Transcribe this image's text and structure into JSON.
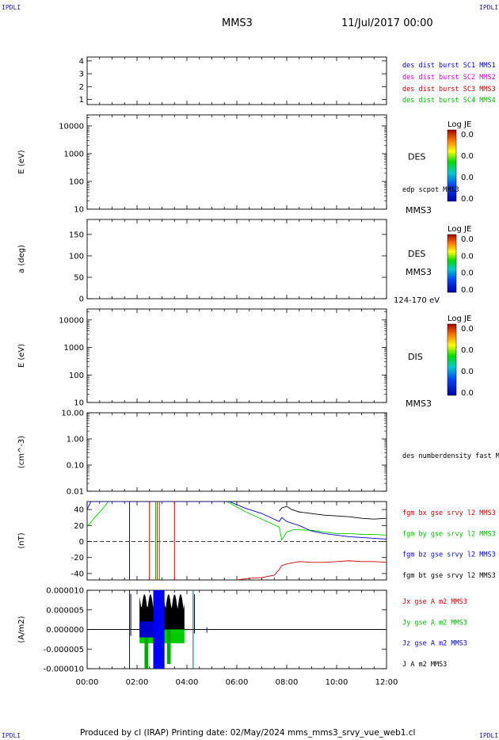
{
  "corners": {
    "tl": "IPDLI",
    "tr": "IPDLI",
    "bl": "IPDLI",
    "br": "IPDLI"
  },
  "header": {
    "spacecraft": "MMS3",
    "date": "11/Jul/2017 00:00"
  },
  "footer": {
    "text": "Produced by cl (IRAP)   Printing date: 02/May/2024   mms_mms3_srvy_vue_web1.cl"
  },
  "colors": {
    "mms1": "#0000cc",
    "mms2": "#cc00cc",
    "mms3": "#cc0000",
    "mms4": "#00bb00",
    "black": "#000000"
  },
  "xaxis": {
    "ticks": [
      "00:00",
      "02:00",
      "04:00",
      "06:00",
      "08:00",
      "10:00",
      "12:00"
    ]
  },
  "chart_data": [
    {
      "type": "line",
      "id": "availability",
      "yticks": [
        "1",
        "2",
        "3",
        "4"
      ],
      "ylim": [
        0.6,
        4.3
      ],
      "legend": [
        {
          "text": "des dist burst SC1 MMS1",
          "color": "#0000cc"
        },
        {
          "text": "des dist burst SC2 MMS2",
          "color": "#cc00cc"
        },
        {
          "text": "des dist burst SC3 MMS3",
          "color": "#cc0000"
        },
        {
          "text": "des dist burst SC4 MMS4",
          "color": "#00bb00"
        }
      ]
    },
    {
      "type": "heatmap",
      "id": "des-energy",
      "ylabel": "E (eV)",
      "yticks": [
        "10",
        "100",
        "1000",
        "10000"
      ],
      "yscale": "log",
      "ylim": [
        10,
        25000
      ],
      "label": "DES",
      "label2": "MMS3",
      "colorbar": {
        "title": "Log JE",
        "ticks": [
          "0.0",
          "0.0",
          "0.0",
          "0.0"
        ]
      },
      "extra": "edp scpot MMS3"
    },
    {
      "type": "heatmap",
      "id": "des-pitch",
      "ylabel": "a (deg)",
      "yticks": [
        "0",
        "50",
        "100",
        "150"
      ],
      "ylim": [
        0,
        185
      ],
      "label": "DES",
      "label2": "MMS3",
      "energy": "124-170 eV",
      "colorbar": {
        "title": "Log JE",
        "ticks": [
          "0.0",
          "0.0",
          "0.0",
          "0.0"
        ]
      }
    },
    {
      "type": "heatmap",
      "id": "dis-energy",
      "ylabel": "E (eV)",
      "yticks": [
        "10",
        "100",
        "1000",
        "10000"
      ],
      "yscale": "log",
      "ylim": [
        10,
        25000
      ],
      "label": "DIS",
      "label2": "MMS3",
      "colorbar": {
        "title": "Log JE",
        "ticks": [
          "0.0",
          "0.0",
          "0.0",
          "0.0"
        ]
      }
    },
    {
      "type": "line",
      "id": "density",
      "ylabel": "(cm^-3)",
      "yticks": [
        "0.01",
        "0.10",
        "1.00",
        "10.00"
      ],
      "yscale": "log",
      "ylim": [
        0.01,
        10
      ],
      "legend": [
        {
          "text": "des numberdensity fast M",
          "color": "#000000"
        }
      ]
    },
    {
      "type": "line",
      "id": "fgm",
      "ylabel": "(nT)",
      "yticks": [
        "-40",
        "-20",
        "0",
        "20",
        "40"
      ],
      "ylim": [
        -48,
        50
      ],
      "legend": [
        {
          "text": "fgm bx gse srvy l2 MMS3",
          "color": "#cc0000"
        },
        {
          "text": "fgm by gse srvy l2 MMS3",
          "color": "#00bb00"
        },
        {
          "text": "fgm bz gse srvy l2 MMS3",
          "color": "#0000cc"
        },
        {
          "text": "fgm bt gse srvy l2 MMS3",
          "color": "#000000"
        }
      ],
      "series": [
        {
          "name": "fgm bt gse srvy l2 MMS3",
          "x": [
            7.7,
            7.8,
            8.0,
            8.2,
            8.5,
            9.0,
            9.5,
            10.0,
            10.5,
            11.0,
            11.5,
            12.0
          ],
          "values": [
            38,
            42,
            44,
            40,
            37,
            35,
            33,
            32,
            31,
            29,
            28,
            29
          ]
        },
        {
          "name": "fgm by gse srvy l2 MMS3",
          "x": [
            0,
            0.1,
            0.3,
            0.6,
            0.85,
            5.6,
            6.3,
            7.0,
            7.7,
            7.8,
            8.0,
            8.3,
            9.0,
            9.5,
            10.0,
            10.5,
            11.0,
            11.5,
            12.0
          ],
          "values": [
            20,
            22,
            30,
            40,
            50,
            50,
            38,
            28,
            18,
            2,
            12,
            15,
            14,
            12,
            10,
            10,
            9,
            9,
            8
          ]
        },
        {
          "name": "fgm bz gse srvy l2 MMS3",
          "x": [
            0,
            0.15,
            5.7,
            6.3,
            7.0,
            7.7,
            7.8,
            8.0,
            8.5,
            9.0,
            9.5,
            10.0,
            10.5,
            11.0,
            11.5,
            12.0
          ],
          "values": [
            40,
            50,
            50,
            42,
            35,
            25,
            30,
            25,
            20,
            13,
            10,
            8,
            6,
            5,
            4,
            3
          ]
        },
        {
          "name": "fgm bx gse srvy l2 MMS3",
          "x": [
            6.0,
            6.5,
            7.0,
            7.5,
            7.7,
            7.8,
            8.0,
            8.5,
            9.0,
            9.5,
            10.0,
            10.5,
            11.0,
            11.5,
            12.0
          ],
          "values": [
            -48,
            -46,
            -45,
            -42,
            -35,
            -30,
            -28,
            -25,
            -26,
            -26,
            -25,
            -24,
            -25,
            -25,
            -26
          ]
        }
      ]
    },
    {
      "type": "line",
      "id": "current",
      "ylabel": "(A/m2)",
      "yticks": [
        "-0.000010",
        "-0.000005",
        "0.000000",
        "0.000005",
        "0.000010"
      ],
      "ylim": [
        -1e-05,
        1e-05
      ],
      "legend": [
        {
          "text": "Jx gse A m2 MMS3",
          "color": "#cc0000"
        },
        {
          "text": "Jy gse A m2 MMS3",
          "color": "#00bb00"
        },
        {
          "text": "Jz gse A m2 MMS3",
          "color": "#0000cc"
        },
        {
          "text": "J A m2 MMS3",
          "color": "#000000"
        }
      ]
    }
  ]
}
